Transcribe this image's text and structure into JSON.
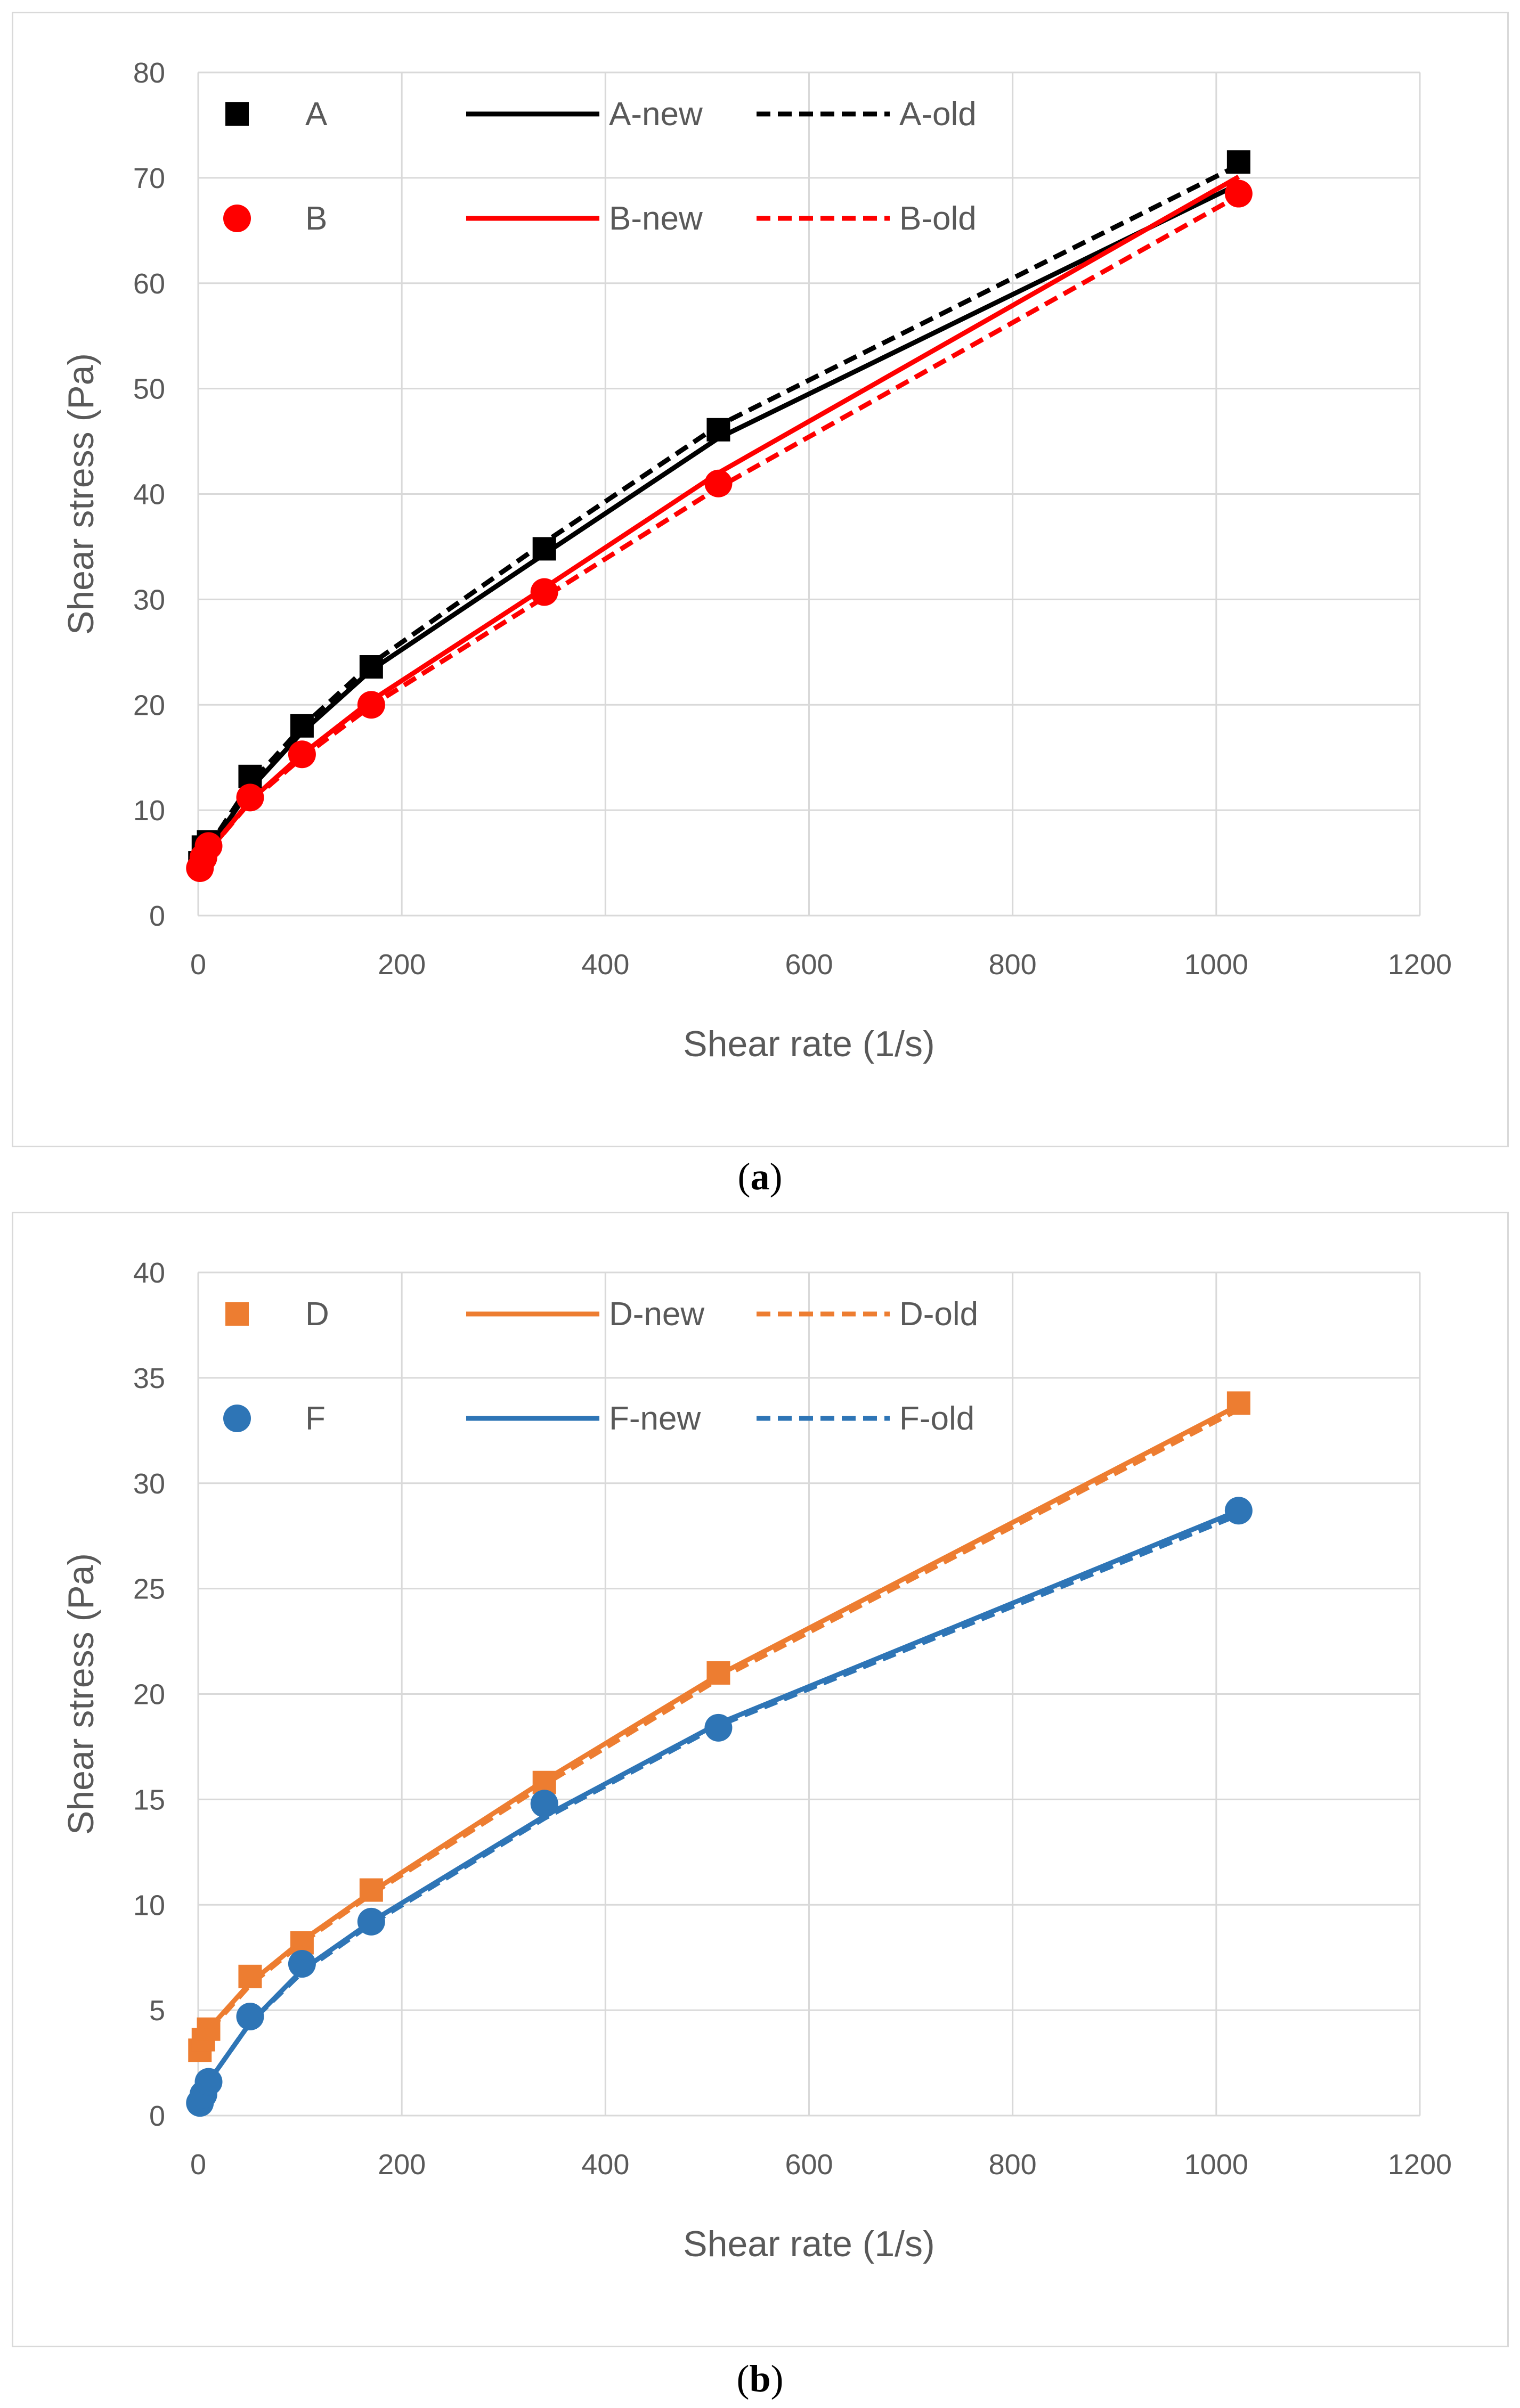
{
  "chart_data": [
    {
      "type": "scatter",
      "panel": "a",
      "caption": "a",
      "xlabel": "Shear rate (1/s)",
      "ylabel": "Shear stress (Pa)",
      "xlim": [
        0,
        1200
      ],
      "ylim": [
        0,
        80
      ],
      "xticks": [
        0,
        200,
        400,
        600,
        800,
        1000,
        1200
      ],
      "yticks": [
        0,
        10,
        20,
        30,
        40,
        50,
        60,
        70,
        80
      ],
      "grid": true,
      "legend_position": "top-left",
      "x": [
        1.7,
        5.1,
        10.2,
        51,
        102,
        170,
        340,
        511,
        1022
      ],
      "points": [
        {
          "name": "A",
          "color": "#000000",
          "marker": "square",
          "values": [
            5.0,
            6.5,
            7.0,
            13.2,
            18.0,
            23.6,
            34.8,
            46.1,
            71.5
          ]
        },
        {
          "name": "B",
          "color": "#ff0000",
          "marker": "circle",
          "values": [
            4.5,
            5.5,
            6.6,
            11.2,
            15.3,
            20.0,
            30.7,
            41.0,
            68.5
          ]
        }
      ],
      "curves": [
        {
          "name": "A-new",
          "color": "#000000",
          "dash": "solid",
          "values": [
            4.3,
            5.4,
            6.3,
            12.0,
            17.4,
            23.3,
            34.3,
            45.3,
            69.4
          ]
        },
        {
          "name": "A-old",
          "color": "#000000",
          "dash": "dashed",
          "values": [
            4.5,
            5.6,
            6.5,
            12.5,
            17.9,
            23.9,
            35.4,
            46.5,
            71.2
          ]
        },
        {
          "name": "B-new",
          "color": "#ff0000",
          "dash": "solid",
          "values": [
            4.5,
            5.3,
            6.1,
            10.9,
            15.3,
            20.4,
            31.1,
            42.0,
            70.1
          ]
        },
        {
          "name": "B-old",
          "color": "#ff0000",
          "dash": "dashed",
          "values": [
            4.5,
            5.3,
            6.1,
            10.8,
            15.0,
            19.9,
            30.2,
            40.6,
            68.3
          ]
        }
      ]
    },
    {
      "type": "scatter",
      "panel": "b",
      "caption": "b",
      "xlabel": "Shear rate (1/s)",
      "ylabel": "Shear stress (Pa)",
      "xlim": [
        0,
        1200
      ],
      "ylim": [
        0,
        40
      ],
      "xticks": [
        0,
        200,
        400,
        600,
        800,
        1000,
        1200
      ],
      "yticks": [
        0,
        5,
        10,
        15,
        20,
        25,
        30,
        35,
        40
      ],
      "grid": true,
      "legend_position": "top-left",
      "x": [
        1.7,
        5.1,
        10.2,
        51,
        102,
        170,
        340,
        511,
        1022
      ],
      "points": [
        {
          "name": "D",
          "color": "#ed7d31",
          "marker": "square",
          "values": [
            3.1,
            3.6,
            4.1,
            6.6,
            8.2,
            10.7,
            15.8,
            21.0,
            33.8
          ]
        },
        {
          "name": "F",
          "color": "#2e75b6",
          "marker": "circle",
          "values": [
            0.6,
            1.0,
            1.6,
            4.7,
            7.2,
            9.2,
            14.8,
            18.4,
            28.7
          ]
        }
      ],
      "curves": [
        {
          "name": "D-new",
          "color": "#ed7d31",
          "dash": "solid",
          "values": [
            3.2,
            3.6,
            4.1,
            6.3,
            8.3,
            10.6,
            15.9,
            20.9,
            33.7
          ]
        },
        {
          "name": "D-old",
          "color": "#ed7d31",
          "dash": "dashed",
          "values": [
            3.2,
            3.6,
            4.0,
            6.2,
            8.2,
            10.5,
            15.7,
            20.7,
            33.5
          ]
        },
        {
          "name": "F-new",
          "color": "#2e75b6",
          "dash": "solid",
          "values": [
            0.5,
            1.0,
            1.6,
            4.4,
            6.9,
            9.2,
            14.2,
            18.6,
            28.7
          ]
        },
        {
          "name": "F-old",
          "color": "#2e75b6",
          "dash": "dashed",
          "values": [
            0.5,
            1.0,
            1.6,
            4.4,
            6.8,
            9.1,
            14.1,
            18.5,
            28.5
          ]
        }
      ]
    }
  ]
}
